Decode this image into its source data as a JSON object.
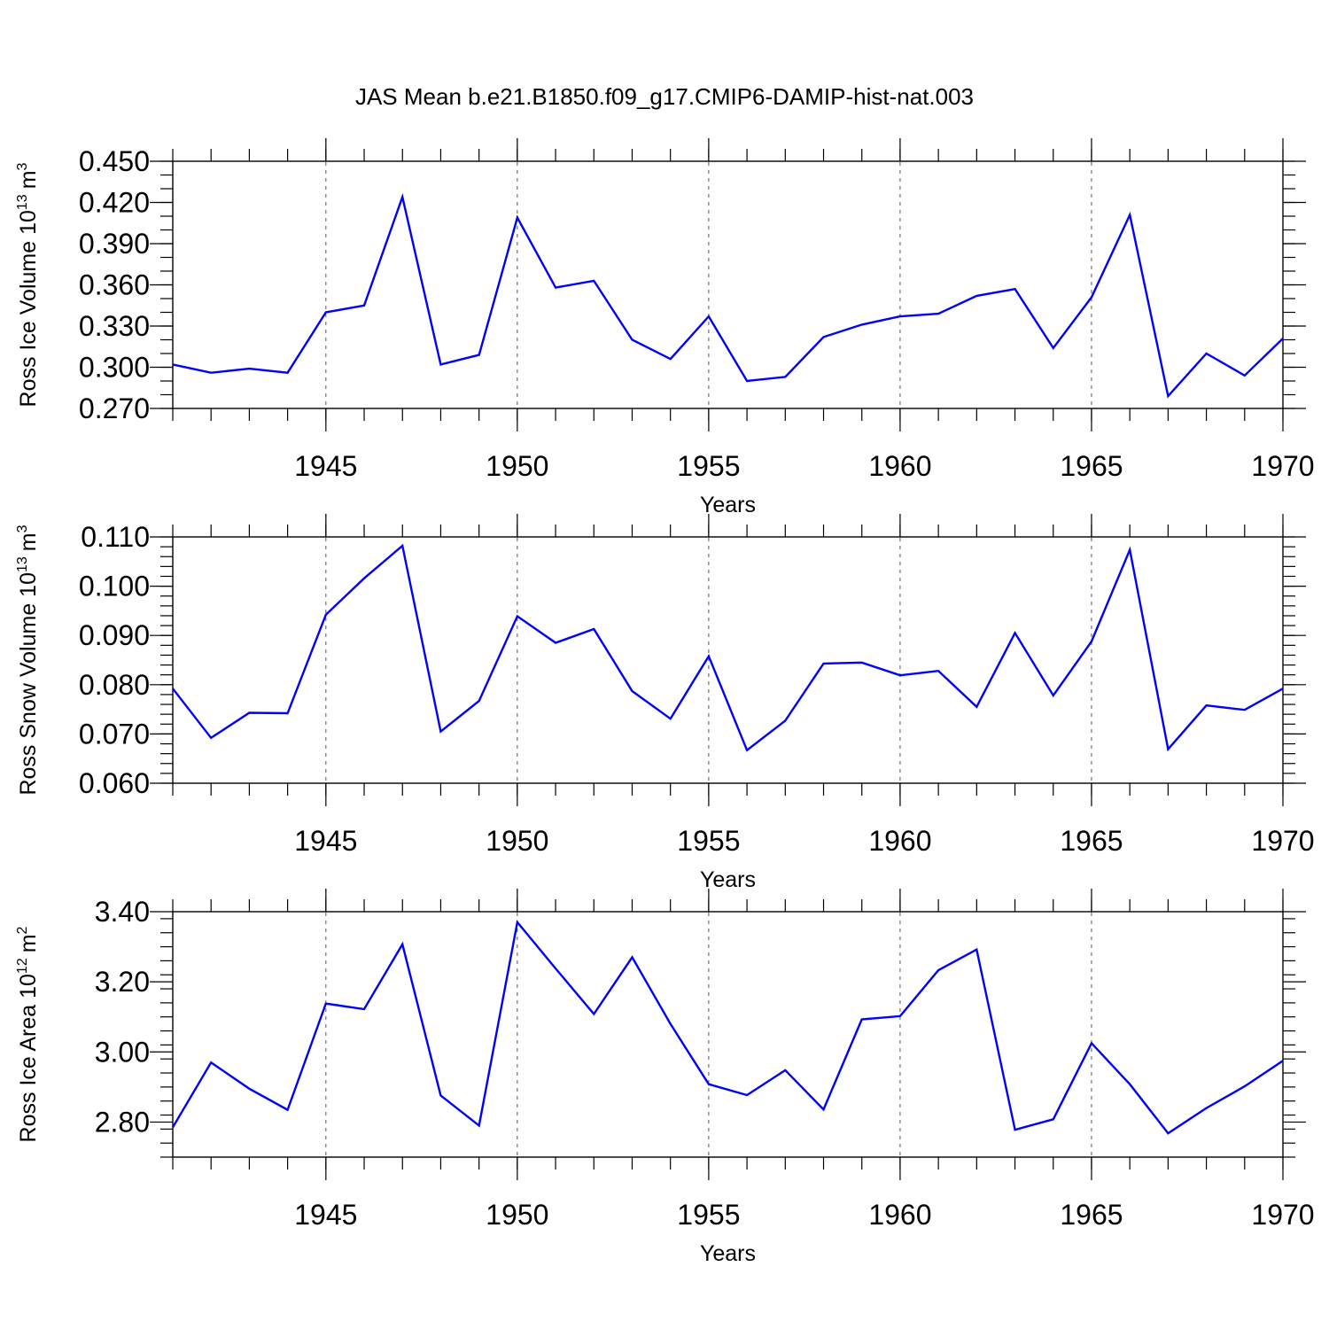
{
  "title": "JAS Mean b.e21.B1850.f09_g17.CMIP6-DAMIP-hist-nat.003",
  "colors": {
    "line": "#0000ff",
    "axis": "#000000",
    "grid": "#555555"
  },
  "chart_data": [
    {
      "type": "line",
      "ylabel_main": "Ross Ice Volume 10",
      "ylabel_exp": "13",
      "ylabel_unit": "m",
      "ylabel_unit_exp": "3",
      "xlabel": "Years",
      "xlim": [
        1941,
        1970
      ],
      "ylim": [
        0.27,
        0.45
      ],
      "yticks": [
        0.27,
        0.3,
        0.33,
        0.36,
        0.39,
        0.42,
        0.45
      ],
      "ytick_labels": [
        "0.270",
        "0.300",
        "0.330",
        "0.360",
        "0.390",
        "0.420",
        "0.450"
      ],
      "yminor_step": 0.01,
      "xticks": [
        1945,
        1950,
        1955,
        1960,
        1965,
        1970
      ],
      "xtick_labels": [
        "1945",
        "1950",
        "1955",
        "1960",
        "1965",
        "1970"
      ],
      "x": [
        1941,
        1942,
        1943,
        1944,
        1945,
        1946,
        1947,
        1948,
        1949,
        1950,
        1951,
        1952,
        1953,
        1954,
        1955,
        1956,
        1957,
        1958,
        1959,
        1960,
        1961,
        1962,
        1963,
        1964,
        1965,
        1966,
        1967,
        1968,
        1969,
        1970
      ],
      "values": [
        0.302,
        0.296,
        0.299,
        0.296,
        0.34,
        0.345,
        0.424,
        0.302,
        0.309,
        0.409,
        0.358,
        0.363,
        0.32,
        0.306,
        0.337,
        0.29,
        0.293,
        0.322,
        0.331,
        0.337,
        0.339,
        0.352,
        0.357,
        0.314,
        0.351,
        0.411,
        0.279,
        0.31,
        0.294,
        0.321
      ]
    },
    {
      "type": "line",
      "ylabel_main": "Ross Snow Volume 10",
      "ylabel_exp": "13",
      "ylabel_unit": "m",
      "ylabel_unit_exp": "3",
      "xlabel": "Years",
      "xlim": [
        1941,
        1970
      ],
      "ylim": [
        0.06,
        0.11
      ],
      "yticks": [
        0.06,
        0.07,
        0.08,
        0.09,
        0.1,
        0.11
      ],
      "ytick_labels": [
        "0.060",
        "0.070",
        "0.080",
        "0.090",
        "0.100",
        "0.110"
      ],
      "yminor_step": 0.002,
      "xticks": [
        1945,
        1950,
        1955,
        1960,
        1965,
        1970
      ],
      "xtick_labels": [
        "1945",
        "1950",
        "1955",
        "1960",
        "1965",
        "1970"
      ],
      "x": [
        1941,
        1942,
        1943,
        1944,
        1945,
        1946,
        1947,
        1948,
        1949,
        1950,
        1951,
        1952,
        1953,
        1954,
        1955,
        1956,
        1957,
        1958,
        1959,
        1960,
        1961,
        1962,
        1963,
        1964,
        1965,
        1966,
        1967,
        1968,
        1969,
        1970
      ],
      "values": [
        0.0792,
        0.0692,
        0.0743,
        0.0742,
        0.0942,
        0.1016,
        0.1082,
        0.0705,
        0.0767,
        0.0939,
        0.0885,
        0.0913,
        0.0787,
        0.0731,
        0.0858,
        0.0667,
        0.0727,
        0.0843,
        0.0845,
        0.0819,
        0.0828,
        0.0755,
        0.0905,
        0.0778,
        0.0888,
        0.1074,
        0.0669,
        0.0758,
        0.0749,
        0.0792
      ]
    },
    {
      "type": "line",
      "ylabel_main": "Ross Ice Area 10",
      "ylabel_exp": "12",
      "ylabel_unit": "m",
      "ylabel_unit_exp": "2",
      "xlabel": "Years",
      "xlim": [
        1941,
        1970
      ],
      "ylim": [
        2.7,
        3.4
      ],
      "yticks": [
        2.8,
        3.0,
        3.2,
        3.4
      ],
      "ytick_labels": [
        "2.80",
        "3.00",
        "3.20",
        "3.40"
      ],
      "yminor_step": 0.04,
      "xticks": [
        1945,
        1950,
        1955,
        1960,
        1965,
        1970
      ],
      "xtick_labels": [
        "1945",
        "1950",
        "1955",
        "1960",
        "1965",
        "1970"
      ],
      "x": [
        1941,
        1942,
        1943,
        1944,
        1945,
        1946,
        1947,
        1948,
        1949,
        1950,
        1951,
        1952,
        1953,
        1954,
        1955,
        1956,
        1957,
        1958,
        1959,
        1960,
        1961,
        1962,
        1963,
        1964,
        1965,
        1966,
        1967,
        1968,
        1969,
        1970
      ],
      "values": [
        2.785,
        2.97,
        2.895,
        2.835,
        3.138,
        3.122,
        3.307,
        2.876,
        2.79,
        3.37,
        3.238,
        3.108,
        3.27,
        3.08,
        2.908,
        2.877,
        2.948,
        2.836,
        3.093,
        3.102,
        3.233,
        3.292,
        2.778,
        2.808,
        3.025,
        2.908,
        2.768,
        2.84,
        2.902,
        2.975
      ]
    }
  ]
}
